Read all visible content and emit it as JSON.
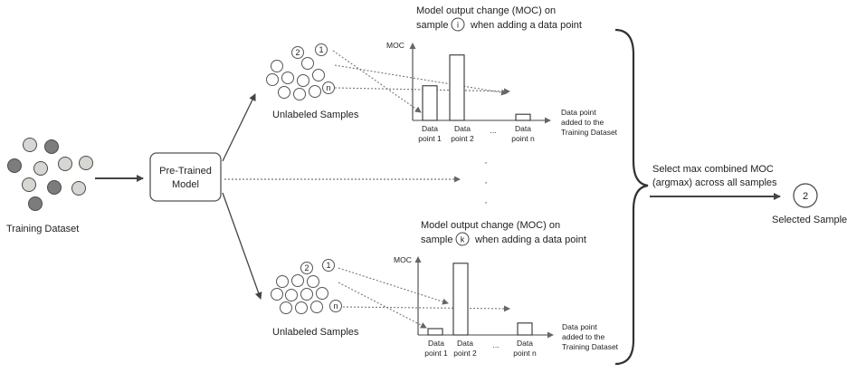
{
  "training_dataset": {
    "label": "Training Dataset",
    "colors": {
      "light": "#d6d6d2",
      "dark": "#7c7c7c",
      "stroke": "#4a4a4a"
    }
  },
  "model_box": {
    "line1": "Pre-Trained",
    "line2": "Model"
  },
  "top_branch": {
    "pool_label": "Unlabeled Samples",
    "pool_circle_labels": [
      "2",
      "1",
      "n"
    ],
    "title_line1": "Model output change (MOC) on",
    "title_line2a": "sample",
    "title_sample": "i",
    "title_line2b": "when adding a data point",
    "y_axis_label": "MOC",
    "x_axis_label": [
      "Data point",
      "added to the",
      "Training Dataset"
    ],
    "bar_labels": [
      [
        "Data",
        "point 1"
      ],
      [
        "Data",
        "point 2"
      ],
      [
        "...",
        ""
      ],
      [
        "Data",
        "point n"
      ]
    ]
  },
  "middle_dots": "·",
  "bottom_branch": {
    "pool_label": "Unlabeled Samples",
    "pool_circle_labels": [
      "2",
      "1",
      "n"
    ],
    "title_line1": "Model output change (MOC) on",
    "title_line2a": "sample",
    "title_sample": "k",
    "title_line2b": "when adding a data point",
    "y_axis_label": "MOC",
    "x_axis_label": [
      "Data point",
      "added to the",
      "Training Dataset"
    ],
    "bar_labels": [
      [
        "Data",
        "point 1"
      ],
      [
        "Data",
        "point 2"
      ],
      [
        "...",
        ""
      ],
      [
        "Data",
        "point n"
      ]
    ]
  },
  "selection": {
    "text_line1": "Select max combined MOC",
    "text_line2": "(argmax) across all samples",
    "selected_number": "2",
    "selected_label": "Selected Sample"
  },
  "chart_data": [
    {
      "type": "bar",
      "categories": [
        "Data point 1",
        "Data point 2",
        "...",
        "Data point n"
      ],
      "values": [
        0.45,
        0.85,
        null,
        0.08
      ],
      "title": "Model output change (MOC) on sample i when adding a data point",
      "ylabel": "MOC",
      "xlabel": "Data point added to the Training Dataset",
      "ylim": [
        0,
        1
      ],
      "grid": false
    },
    {
      "type": "bar",
      "categories": [
        "Data point 1",
        "Data point 2",
        "...",
        "Data point n"
      ],
      "values": [
        0.08,
        0.9,
        null,
        0.15
      ],
      "title": "Model output change (MOC) on sample k when adding a data point",
      "ylabel": "MOC",
      "xlabel": "Data point added to the Training Dataset",
      "ylim": [
        0,
        1
      ],
      "grid": false
    }
  ]
}
